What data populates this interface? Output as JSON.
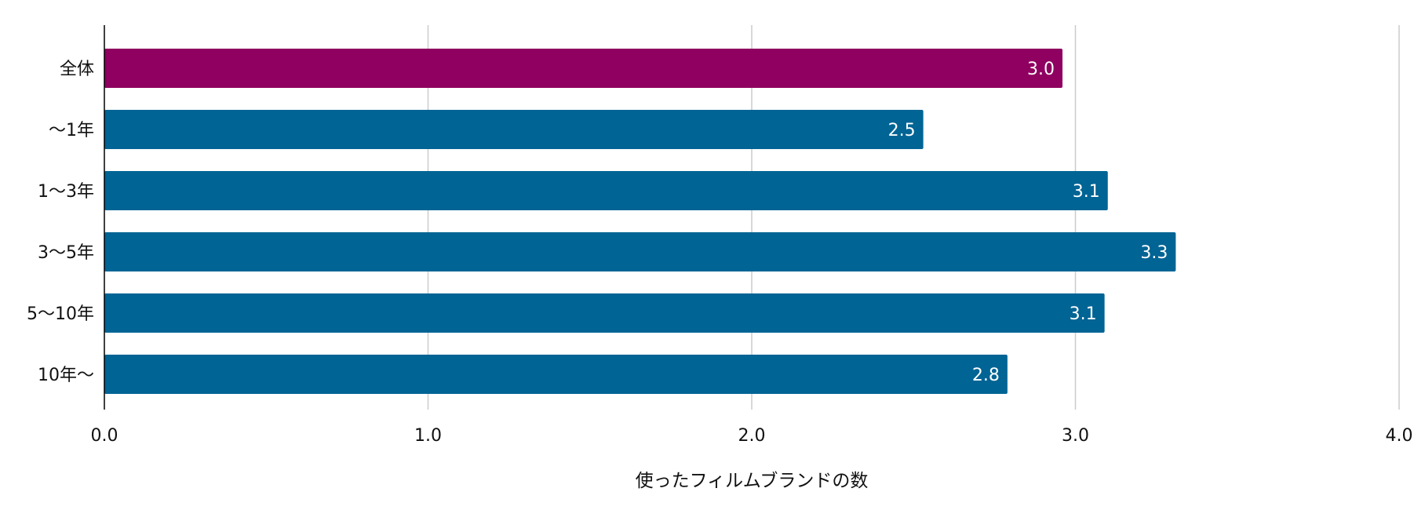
{
  "chart_data": {
    "type": "bar",
    "orientation": "horizontal",
    "categories": [
      "全体",
      "〜1年",
      "1〜3年",
      "3〜5年",
      "5〜10年",
      "10年〜"
    ],
    "values": [
      2.96,
      2.53,
      3.1,
      3.31,
      3.09,
      2.79
    ],
    "data_labels": [
      "3.0",
      "2.5",
      "3.1",
      "3.3",
      "3.1",
      "2.8"
    ],
    "xlabel": "使ったフィルムブランドの数",
    "ylabel": "",
    "xlim": [
      0,
      4
    ],
    "x_ticks": [
      0,
      1,
      2,
      3,
      4
    ],
    "x_tick_labels": [
      "0.0",
      "1.0",
      "2.0",
      "3.0",
      "4.0"
    ],
    "grid": "vertical",
    "legend": "none",
    "colors": {
      "highlight": "#8f0060",
      "default": "#006494",
      "grid": "#cccccc",
      "axis": "#000000",
      "label_inside": "#ffffff",
      "text": "#111111"
    },
    "highlight_index": 0
  }
}
